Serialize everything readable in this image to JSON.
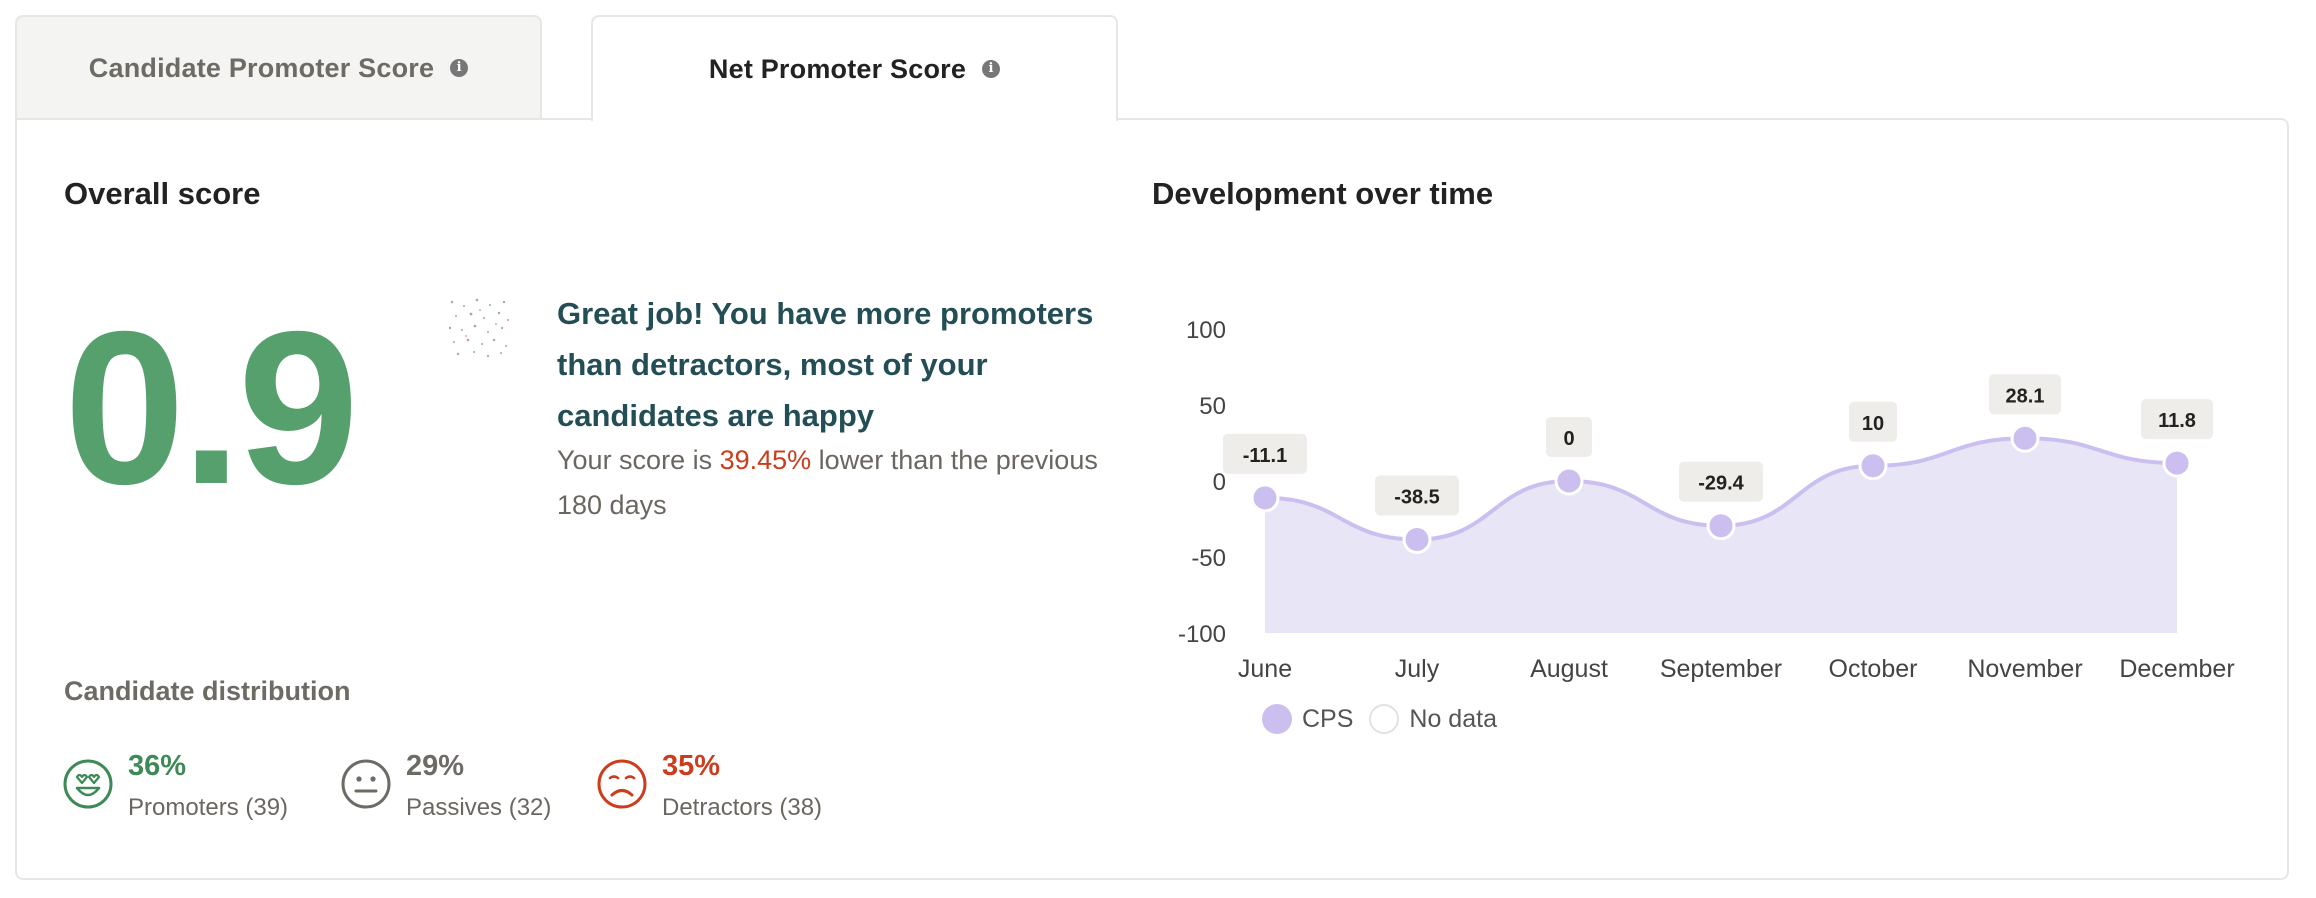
{
  "tabs": [
    {
      "label": "Candidate Promoter Score",
      "active": false
    },
    {
      "label": "Net Promoter Score",
      "active": true
    }
  ],
  "overall": {
    "heading": "Overall score",
    "score": "0.9",
    "score_color": "#55a06c",
    "message": "Great job! You have more promoters than detractors, most of your candidates are happy",
    "sub_prefix": "Your score is ",
    "sub_pct": "39.45%",
    "sub_suffix": " lower than the previous 180 days"
  },
  "distribution": {
    "heading": "Candidate distribution",
    "items": [
      {
        "pct": "36%",
        "label": "Promoters (39)",
        "color": "#3e8a56",
        "icon": "heart-eyes-face-icon"
      },
      {
        "pct": "29%",
        "label": "Passives (32)",
        "color": "#6e6b64",
        "icon": "neutral-face-icon"
      },
      {
        "pct": "35%",
        "label": "Detractors (38)",
        "color": "#cc3d1e",
        "icon": "sad-face-icon"
      }
    ]
  },
  "development": {
    "heading": "Development over time"
  },
  "chart_data": {
    "type": "area",
    "title": "",
    "categories": [
      "June",
      "July",
      "August",
      "September",
      "October",
      "November",
      "December"
    ],
    "series": [
      {
        "name": "CPS",
        "values": [
          -11.1,
          -38.5,
          0,
          -29.4,
          10,
          28.1,
          11.8
        ],
        "color": "#cbbff0"
      }
    ],
    "data_labels": [
      "-11.1",
      "-38.5",
      "0",
      "-29.4",
      "10",
      "28.1",
      "11.8"
    ],
    "yticks": [
      "100",
      "50",
      "0",
      "-50",
      "-100"
    ],
    "ylim": [
      -100,
      100
    ],
    "legend": [
      {
        "name": "CPS",
        "color": "#cbbff0"
      },
      {
        "name": "No data",
        "color": "#ffffff"
      }
    ],
    "legend_position": "bottom-left",
    "grid": false
  }
}
